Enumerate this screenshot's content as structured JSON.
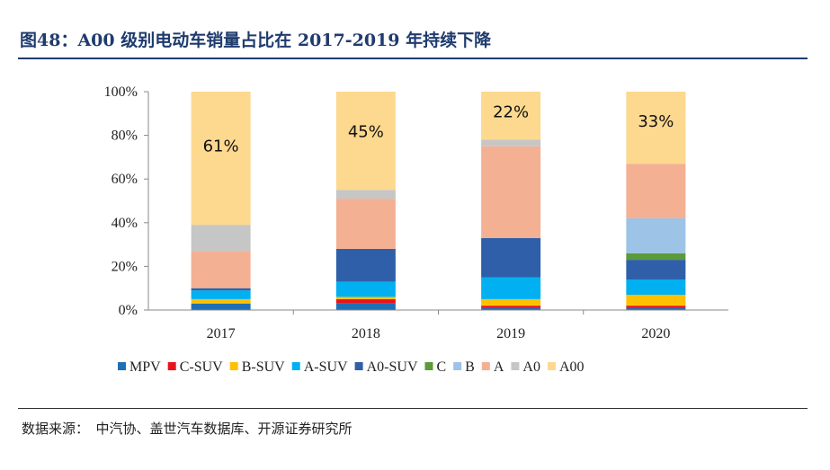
{
  "figure": {
    "title": "图48：A00 级别电动车销量占比在 2017-2019 年持续下降",
    "source": "数据来源：　中汽协、盖世汽车数据库、开源证券研究所"
  },
  "chart_data": {
    "type": "bar",
    "stacked": true,
    "title": "A00 级别电动车销量占比在 2017-2019 年持续下降",
    "xlabel": "",
    "ylabel": "",
    "ylim": [
      0,
      100
    ],
    "yticks": [
      "0%",
      "20%",
      "40%",
      "60%",
      "80%",
      "100%"
    ],
    "categories": [
      "2017",
      "2018",
      "2019",
      "2020"
    ],
    "legend_position": "bottom",
    "series": [
      {
        "name": "MPV",
        "color": "#1f6fb5",
        "values": [
          3,
          3,
          1,
          1
        ]
      },
      {
        "name": "C-SUV",
        "color": "#e8141b",
        "values": [
          0,
          2,
          1,
          1
        ]
      },
      {
        "name": "B-SUV",
        "color": "#ffc000",
        "values": [
          2,
          1,
          3,
          5
        ]
      },
      {
        "name": "A-SUV",
        "color": "#00b0f0",
        "values": [
          4,
          7,
          10,
          7
        ]
      },
      {
        "name": "A0-SUV",
        "color": "#2f5fa8",
        "values": [
          1,
          15,
          18,
          9
        ]
      },
      {
        "name": "C",
        "color": "#5b9b3a",
        "values": [
          0,
          0,
          0,
          3
        ]
      },
      {
        "name": "B",
        "color": "#9dc3e6",
        "values": [
          0,
          0,
          0,
          16
        ]
      },
      {
        "name": "A",
        "color": "#f4b093",
        "values": [
          17,
          23,
          42,
          25
        ]
      },
      {
        "name": "A0",
        "color": "#c6c6c6",
        "values": [
          12,
          4,
          3,
          0
        ]
      },
      {
        "name": "A00",
        "color": "#fdd88f",
        "values": [
          61,
          45,
          22,
          33
        ]
      }
    ],
    "data_labels": [
      "61%",
      "45%",
      "22%",
      "33%"
    ]
  }
}
